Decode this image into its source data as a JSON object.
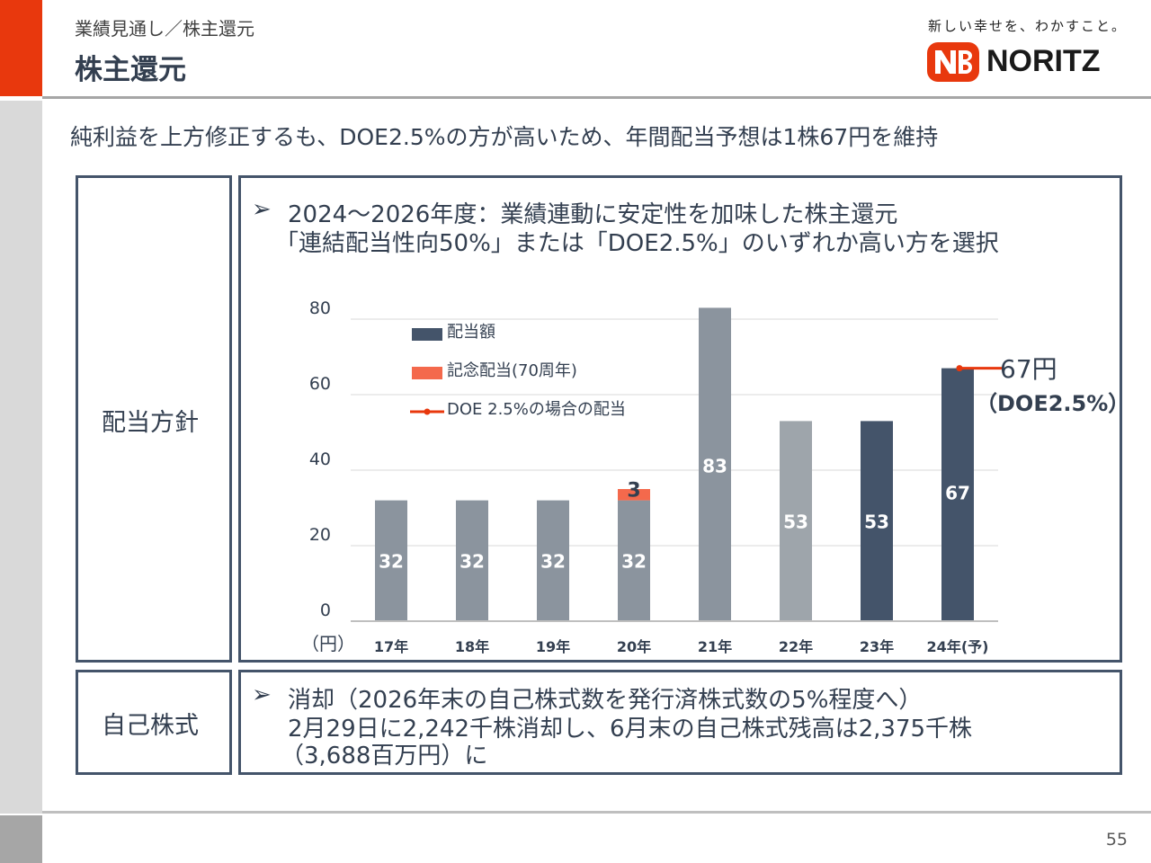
{
  "header": {
    "subtitle": "業績見通し／株主還元",
    "title": "株主還元",
    "tagline": "新しい幸せを、わかすこと。",
    "logo_text": "NORITZ"
  },
  "headline": "純利益を上方修正するも、DOE2.5%の方が高いため、年間配当予想は1株67円を維持",
  "policy": {
    "label": "配当方針",
    "bullet": "➢",
    "line1": "2024～2026年度：業績連動に安定性を加味した株主還元",
    "line2": "「連結配当性向50%」または「DOE2.5%」のいずれか高い方を選択"
  },
  "treasury": {
    "label": "自己株式",
    "bullet": "➢",
    "line1": "消却（2026年末の自己株式数を発行済株式数の5%程度へ）",
    "line2": "2月29日に2,242千株消却し、6月末の自己株式残高は2,375千株",
    "line3": "（3,688百万円）に"
  },
  "chart_data": {
    "type": "bar",
    "categories": [
      "17年",
      "18年",
      "19年",
      "20年",
      "21年",
      "22年",
      "23年",
      "24年(予)"
    ],
    "series": [
      {
        "name": "配当額",
        "values": [
          32,
          32,
          32,
          32,
          83,
          53,
          53,
          67
        ]
      },
      {
        "name": "記念配当(70周年)",
        "values": [
          0,
          0,
          0,
          3,
          0,
          0,
          0,
          0
        ]
      },
      {
        "name": "DOE 2.5%の場合の配当",
        "values": [
          null,
          null,
          null,
          null,
          null,
          null,
          null,
          67
        ]
      }
    ],
    "bar_colors": [
      "#8b949e",
      "#8b949e",
      "#8b949e",
      "#8b949e",
      "#8b949e",
      "#9ea5ab",
      "#44546a",
      "#44546a"
    ],
    "legend_colors": {
      "dividend": "#44546a",
      "commemorative": "#f4694c",
      "doe": "#e8380d"
    },
    "data_labels": [
      "32",
      "32",
      "32",
      "32",
      "83",
      "53",
      "53",
      "67"
    ],
    "commemorative_label": "3",
    "doe_annotation": {
      "value": "67円",
      "note": "（DOE2.5%）"
    },
    "ylim": [
      0,
      80
    ],
    "yticks": [
      "0",
      "20",
      "40",
      "60",
      "80"
    ],
    "yunit": "（円）",
    "grid": true,
    "legend_position": "top-left"
  },
  "page_number": "55"
}
